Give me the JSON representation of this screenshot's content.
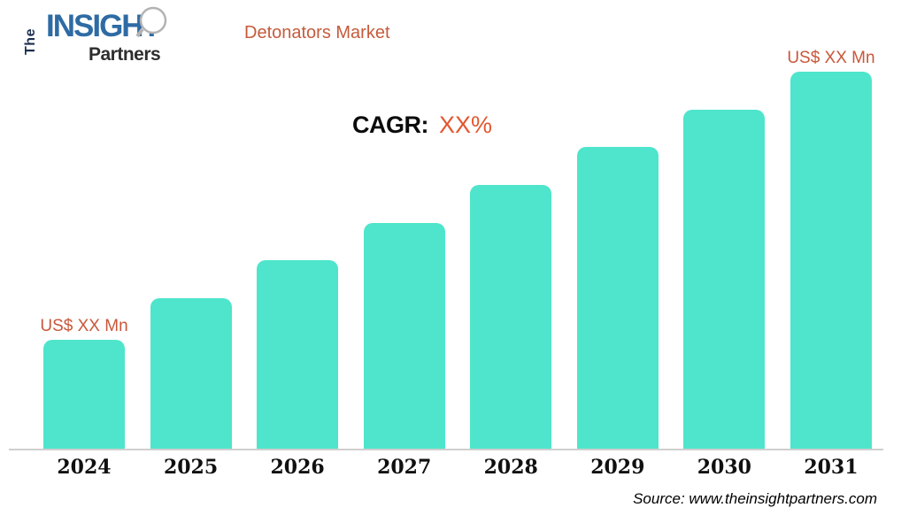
{
  "logo": {
    "the": "The",
    "insight": "INSIGHT",
    "partners": "Partners"
  },
  "header": {
    "title": "Detonators Market"
  },
  "cagr": {
    "label": "CAGR:",
    "value": "XX%"
  },
  "chart_data": {
    "type": "bar",
    "title": "Detonators Market",
    "categories": [
      "2024",
      "2025",
      "2026",
      "2027",
      "2028",
      "2029",
      "2030",
      "2031"
    ],
    "values": [
      29,
      40,
      50,
      60,
      70,
      80,
      90,
      100
    ],
    "ylim": [
      0,
      100
    ],
    "xlabel": "",
    "ylabel": "",
    "grid": false,
    "legend": false,
    "bar_color": "#4ee5cc",
    "first_bar_label": "US$ XX Mn",
    "last_bar_label": "US$ XX Mn"
  },
  "colors": {
    "bar": "#4ee5cc",
    "title_orange": "#c55b3c",
    "cagr_orange": "#e2572f",
    "logo_navy": "#1c2f4d",
    "logo_blue": "#2e6ba4",
    "axis_gray": "#cfcfcf"
  },
  "footer": {
    "source": "Source: www.theinsightpartners.com"
  }
}
